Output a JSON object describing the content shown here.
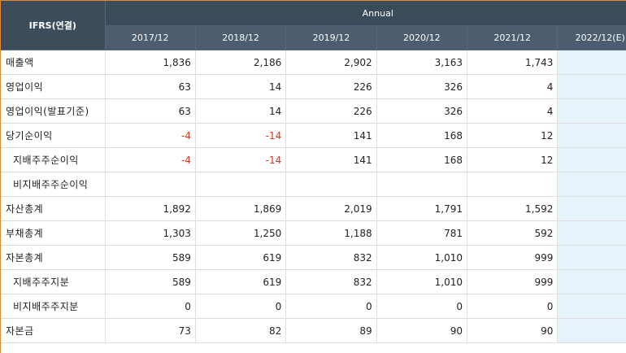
{
  "header": {
    "corner_label": "IFRS(연결)",
    "group_label": "Annual",
    "years": [
      "2017/12",
      "2018/12",
      "2019/12",
      "2020/12",
      "2021/12",
      "2022/12(E)"
    ],
    "estimate_help_icon": "help-icon",
    "accent_color": "#e8892c"
  },
  "rows": [
    {
      "label": "매출액",
      "values": [
        "1,836",
        "2,186",
        "2,902",
        "3,163",
        "1,743",
        ""
      ]
    },
    {
      "label": "영업이익",
      "values": [
        "63",
        "14",
        "226",
        "326",
        "4",
        ""
      ]
    },
    {
      "label": "영업이익(발표기준)",
      "values": [
        "63",
        "14",
        "226",
        "326",
        "4",
        ""
      ]
    },
    {
      "label": "당기순이익",
      "values": [
        "-4",
        "-14",
        "141",
        "168",
        "12",
        ""
      ]
    },
    {
      "label": "지배주주순이익",
      "values": [
        "-4",
        "-14",
        "141",
        "168",
        "12",
        ""
      ]
    },
    {
      "label": "비지배주주순이익",
      "values": [
        "",
        "",
        "",
        "",
        "",
        ""
      ]
    },
    {
      "label": "자산총계",
      "values": [
        "1,892",
        "1,869",
        "2,019",
        "1,791",
        "1,592",
        ""
      ]
    },
    {
      "label": "부채총계",
      "values": [
        "1,303",
        "1,250",
        "1,188",
        "781",
        "592",
        ""
      ]
    },
    {
      "label": "자본총계",
      "values": [
        "589",
        "619",
        "832",
        "1,010",
        "999",
        ""
      ]
    },
    {
      "label": "지배주주지분",
      "values": [
        "589",
        "619",
        "832",
        "1,010",
        "999",
        ""
      ]
    },
    {
      "label": "비지배주주지분",
      "values": [
        "0",
        "0",
        "0",
        "0",
        "0",
        ""
      ]
    },
    {
      "label": "자본금",
      "values": [
        "73",
        "82",
        "89",
        "90",
        "90",
        ""
      ]
    }
  ]
}
